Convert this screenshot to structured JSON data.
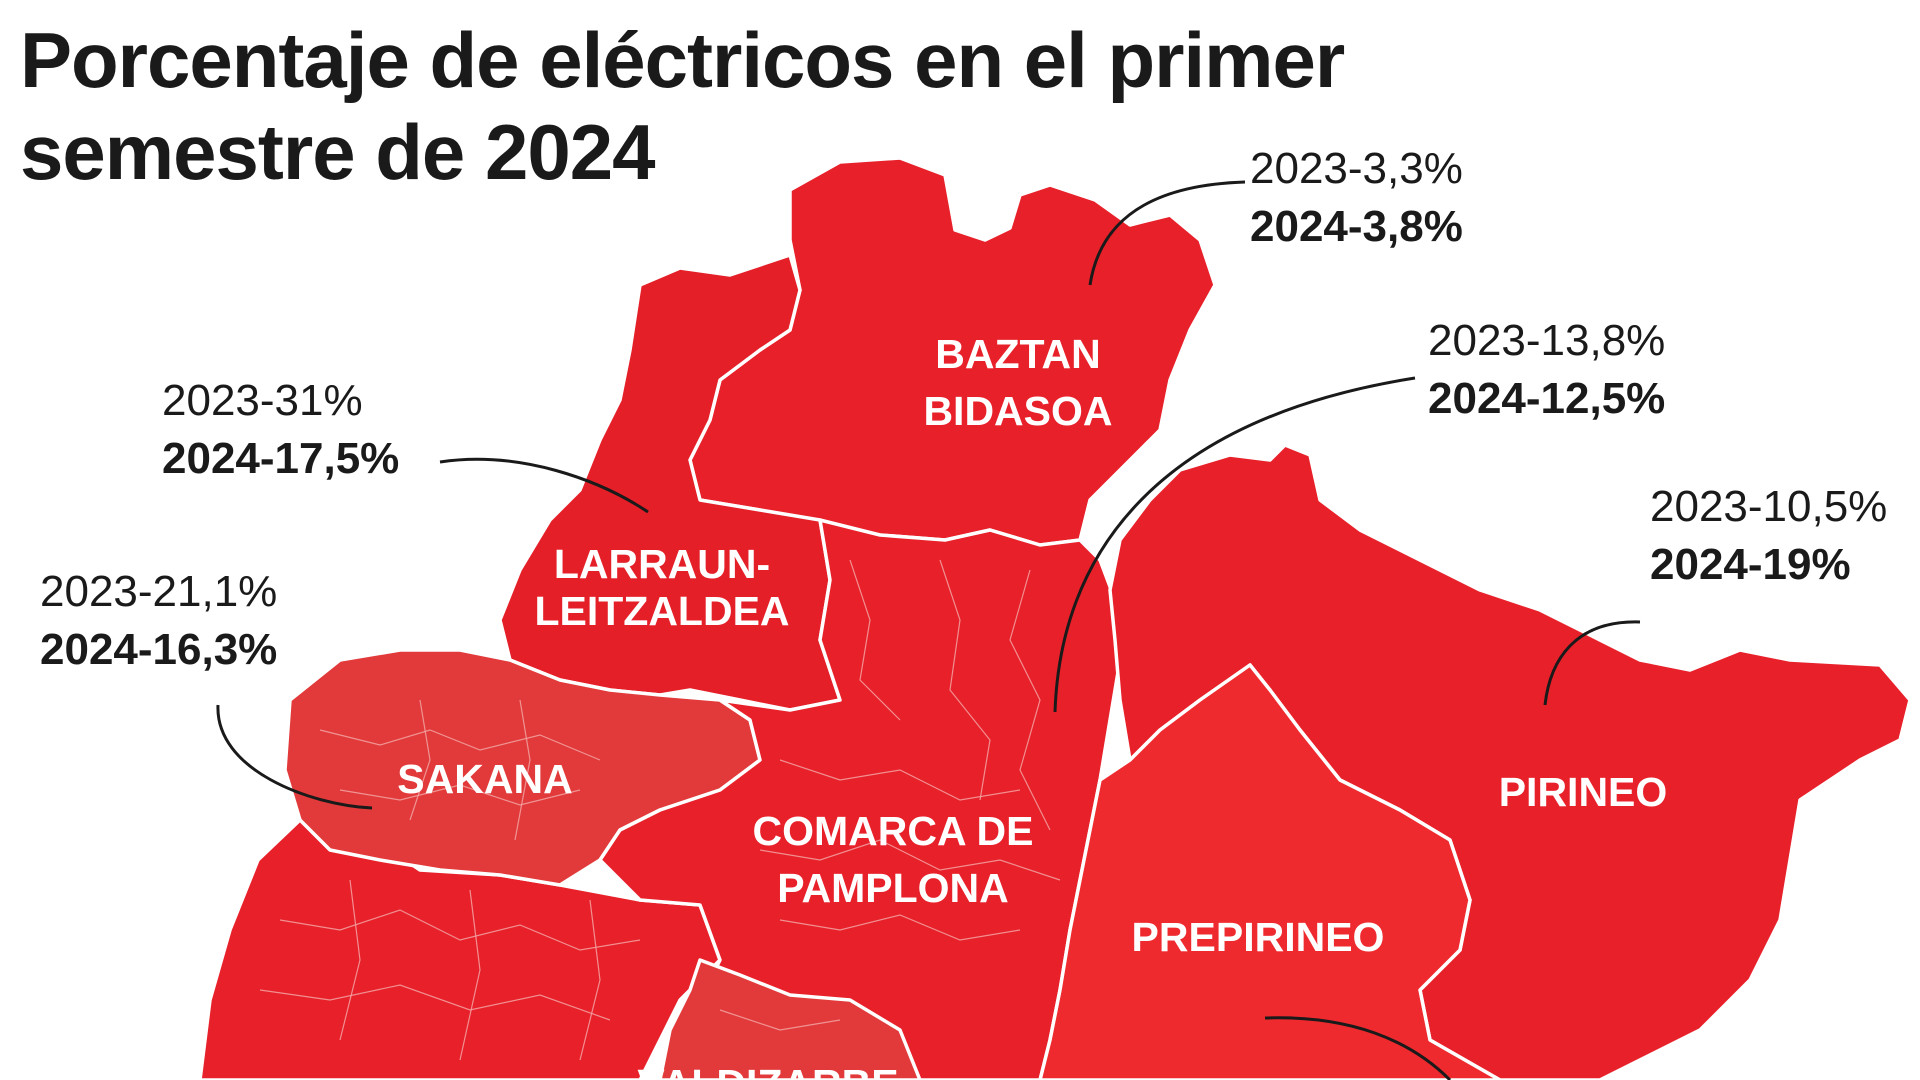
{
  "title": "Porcentaje de eléctricos en el primer semestre de 2024",
  "colors": {
    "map_fill": "#e8202a",
    "map_fill_alt": "#ee2a2f",
    "border": "#ffffff",
    "text": "#1a1a1a"
  },
  "regions": [
    {
      "id": "baztan",
      "label_lines": [
        "BAZTAN",
        "BIDASOA"
      ],
      "y2023": "2023-3,3%",
      "y2024": "2024-3,8%"
    },
    {
      "id": "larraun",
      "label_lines": [
        "LARRAUN-",
        "LEITZALDEA"
      ],
      "y2023": "2023-31%",
      "y2024": "2024-17,5%"
    },
    {
      "id": "sakana",
      "label_lines": [
        "SAKANA"
      ],
      "y2023": "2023-21,1%",
      "y2024": "2024-16,3%"
    },
    {
      "id": "pamplona",
      "label_lines": [
        "COMARCA DE",
        "PAMPLONA"
      ],
      "y2023": "2023-13,8%",
      "y2024": "2024-12,5%"
    },
    {
      "id": "pirineo",
      "label_lines": [
        "PIRINEO"
      ],
      "y2023": "2023-10,5%",
      "y2024": "2024-19%"
    },
    {
      "id": "prepirineo",
      "label_lines": [
        "PREPIRINEO"
      ]
    },
    {
      "id": "valdizarbe",
      "label_lines": [
        "VALDIZARBE"
      ]
    }
  ]
}
